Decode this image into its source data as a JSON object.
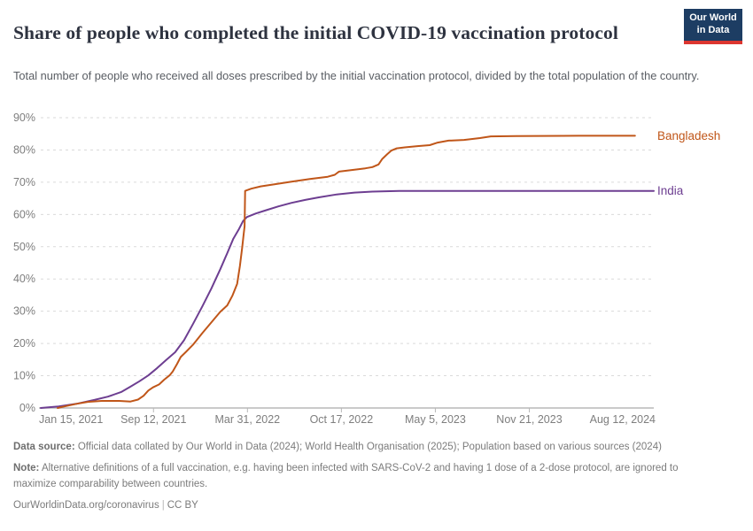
{
  "header": {
    "title": "Share of people who completed the initial COVID-19 vaccination protocol",
    "subtitle": "Total number of people who received all doses prescribed by the initial vaccination protocol, divided by the total population of the country.",
    "logo": {
      "line1": "Our World",
      "line2": "in Data",
      "bg": "#1d3d63",
      "accent": "#dc3630"
    }
  },
  "chart_data": {
    "type": "line",
    "title": "Share of people who completed the initial COVID-19 vaccination protocol",
    "xlabel": "",
    "ylabel": "",
    "grid": "dashed-horizontal",
    "legend_position": "right-end-labels",
    "x_axis": {
      "range": [
        "2021-01-15",
        "2024-08-12"
      ],
      "ticks": [
        {
          "label": "Jan 15, 2021",
          "date": "2021-01-15"
        },
        {
          "label": "Sep 12, 2021",
          "date": "2021-09-12"
        },
        {
          "label": "Mar 31, 2022",
          "date": "2022-03-31"
        },
        {
          "label": "Oct 17, 2022",
          "date": "2022-10-17"
        },
        {
          "label": "May 5, 2023",
          "date": "2023-05-05"
        },
        {
          "label": "Nov 21, 2023",
          "date": "2023-11-21"
        },
        {
          "label": "Aug 12, 2024",
          "date": "2024-08-12"
        }
      ]
    },
    "y_axis": {
      "min": 0,
      "max": 90,
      "ticks": [
        0,
        10,
        20,
        30,
        40,
        50,
        60,
        70,
        80,
        90
      ],
      "suffix": "%"
    },
    "series": [
      {
        "name": "Bangladesh",
        "color": "#c05619",
        "points": [
          [
            "2021-02-20",
            0
          ],
          [
            "2021-03-10",
            0.6
          ],
          [
            "2021-04-01",
            1.3
          ],
          [
            "2021-04-25",
            1.9
          ],
          [
            "2021-05-25",
            2.2
          ],
          [
            "2021-07-01",
            2.2
          ],
          [
            "2021-07-25",
            2.0
          ],
          [
            "2021-08-10",
            2.6
          ],
          [
            "2021-08-22",
            3.8
          ],
          [
            "2021-09-01",
            5.4
          ],
          [
            "2021-09-11",
            6.4
          ],
          [
            "2021-09-24",
            7.3
          ],
          [
            "2021-10-05",
            8.8
          ],
          [
            "2021-10-17",
            10.2
          ],
          [
            "2021-10-23",
            11.3
          ],
          [
            "2021-11-01",
            13.6
          ],
          [
            "2021-11-09",
            15.8
          ],
          [
            "2021-11-20",
            17.4
          ],
          [
            "2021-12-05",
            19.6
          ],
          [
            "2021-12-25",
            23.2
          ],
          [
            "2022-01-13",
            26.5
          ],
          [
            "2022-02-01",
            29.8
          ],
          [
            "2022-02-16",
            31.8
          ],
          [
            "2022-02-27",
            34.8
          ],
          [
            "2022-03-09",
            38.5
          ],
          [
            "2022-03-15",
            44.0
          ],
          [
            "2022-03-20",
            50.0
          ],
          [
            "2022-03-23",
            54.0
          ],
          [
            "2022-03-25",
            56.3
          ],
          [
            "2022-03-26",
            67.3
          ],
          [
            "2022-04-08",
            68.0
          ],
          [
            "2022-04-28",
            68.7
          ],
          [
            "2022-05-26",
            69.3
          ],
          [
            "2022-07-03",
            70.2
          ],
          [
            "2022-08-11",
            71.0
          ],
          [
            "2022-09-18",
            71.7
          ],
          [
            "2022-10-03",
            72.3
          ],
          [
            "2022-10-12",
            73.3
          ],
          [
            "2022-11-14",
            73.9
          ],
          [
            "2022-12-07",
            74.3
          ],
          [
            "2022-12-22",
            74.7
          ],
          [
            "2023-01-04",
            75.5
          ],
          [
            "2023-01-12",
            77.2
          ],
          [
            "2023-01-22",
            78.6
          ],
          [
            "2023-01-31",
            79.8
          ],
          [
            "2023-02-12",
            80.5
          ],
          [
            "2023-03-01",
            80.8
          ],
          [
            "2023-03-28",
            81.2
          ],
          [
            "2023-04-23",
            81.5
          ],
          [
            "2023-05-10",
            82.3
          ],
          [
            "2023-06-02",
            82.9
          ],
          [
            "2023-07-05",
            83.1
          ],
          [
            "2023-08-08",
            83.7
          ],
          [
            "2023-08-31",
            84.2
          ],
          [
            "2023-10-23",
            84.3
          ],
          [
            "2024-03-05",
            84.4
          ],
          [
            "2024-07-03",
            84.4
          ]
        ]
      },
      {
        "name": "India",
        "color": "#6d3e91",
        "points": [
          [
            "2021-01-15",
            0
          ],
          [
            "2021-02-22",
            0.5
          ],
          [
            "2021-04-01",
            1.3
          ],
          [
            "2021-05-09",
            2.5
          ],
          [
            "2021-06-07",
            3.5
          ],
          [
            "2021-07-06",
            5.0
          ],
          [
            "2021-07-25",
            6.6
          ],
          [
            "2021-08-13",
            8.3
          ],
          [
            "2021-09-01",
            10.1
          ],
          [
            "2021-09-20",
            12.4
          ],
          [
            "2021-10-09",
            14.9
          ],
          [
            "2021-10-28",
            17.3
          ],
          [
            "2021-11-16",
            21.0
          ],
          [
            "2021-12-05",
            26.0
          ],
          [
            "2021-12-25",
            31.5
          ],
          [
            "2022-01-13",
            37.0
          ],
          [
            "2022-02-01",
            43.0
          ],
          [
            "2022-02-16",
            48.0
          ],
          [
            "2022-03-01",
            52.5
          ],
          [
            "2022-03-13",
            55.5
          ],
          [
            "2022-03-22",
            58.0
          ],
          [
            "2022-03-30",
            59.2
          ],
          [
            "2022-04-18",
            60.3
          ],
          [
            "2022-05-07",
            61.2
          ],
          [
            "2022-06-05",
            62.5
          ],
          [
            "2022-07-03",
            63.6
          ],
          [
            "2022-08-01",
            64.5
          ],
          [
            "2022-08-30",
            65.3
          ],
          [
            "2022-10-07",
            66.2
          ],
          [
            "2022-11-14",
            66.8
          ],
          [
            "2022-12-22",
            67.1
          ],
          [
            "2023-02-17",
            67.3
          ],
          [
            "2023-12-01",
            67.3
          ],
          [
            "2024-08-12",
            67.3
          ]
        ]
      }
    ]
  },
  "footer": {
    "source_label": "Data source:",
    "source_text": " Official data collated by Our World in Data (2024); World Health Organisation (2025); Population based on various sources (2024)",
    "note_label": "Note:",
    "note_text": " Alternative definitions of a full vaccination, e.g. having been infected with SARS-CoV-2 and having 1 dose of a 2-dose protocol, are ignored to maximize comparability between countries.",
    "link": "OurWorldinData.org/coronavirus",
    "separator": "|",
    "license": "CC BY"
  }
}
